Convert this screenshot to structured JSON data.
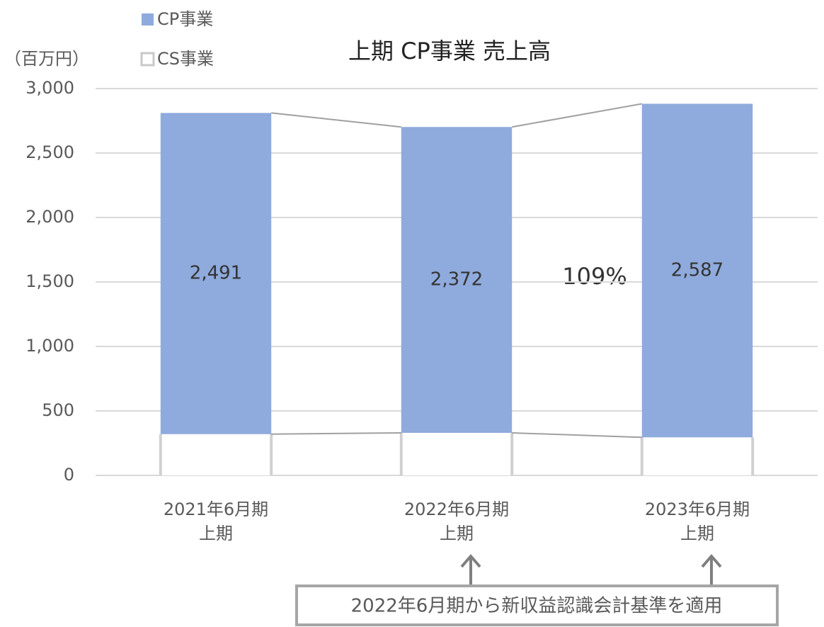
{
  "chart_data": {
    "type": "stacked_bar",
    "title": "上期 CP事業 売上高",
    "y_axis_label": "（百万円）",
    "categories": [
      [
        "2021年6月期",
        "上期"
      ],
      [
        "2022年6月期",
        "上期"
      ],
      [
        "2023年6月期",
        "上期"
      ]
    ],
    "series": [
      {
        "name": "CS事業",
        "color": "#ffffff",
        "values": [
          320,
          330,
          295
        ]
      },
      {
        "name": "CP事業",
        "color": "#8faadc",
        "values": [
          2491,
          2372,
          2587
        ],
        "value_labels": [
          "2,491",
          "2,372",
          "2,587"
        ]
      }
    ],
    "ylim": [
      0,
      3000
    ],
    "yticks": [
      0,
      500,
      {
        "value": 1000,
        "label": "1,000"
      },
      {
        "value": 1500,
        "label": "1,500"
      },
      {
        "value": 2000,
        "label": "2,000"
      },
      {
        "value": 2500,
        "label": "2,500"
      },
      {
        "value": 3000,
        "label": "3,000"
      }
    ],
    "grid": true,
    "annotations": [
      "109%",
      "2022年6月期から新収益認識会計基準を適用"
    ]
  }
}
